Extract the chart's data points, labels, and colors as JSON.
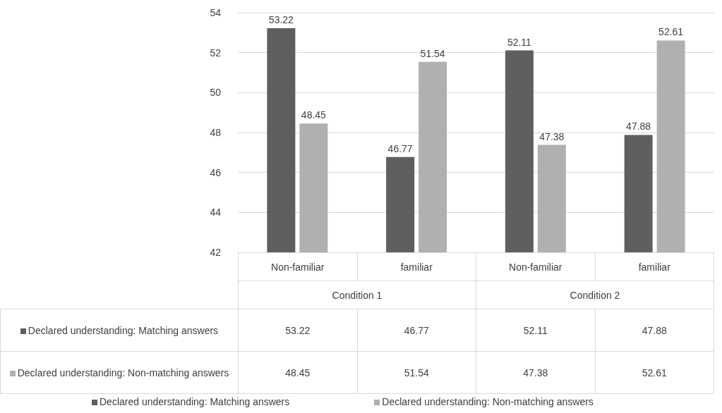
{
  "chart_data": {
    "type": "bar",
    "categories": [
      "Non-familiar",
      "familiar",
      "Non-familiar",
      "familiar"
    ],
    "annotations": [
      "Condition 1",
      "Condition 2",
      "53.22",
      "46.77",
      "52.11",
      "47.88",
      "48.45",
      "51.54",
      "47.38",
      "52.61"
    ],
    "series": [
      {
        "name": "Declared understanding: Matching answers",
        "color": "#5f5f5f",
        "values": [
          53.22,
          46.77,
          52.11,
          47.88
        ]
      },
      {
        "name": "Declared understanding: Non-matching answers",
        "color": "#b0b0b0",
        "values": [
          48.45,
          51.54,
          47.38,
          52.61
        ]
      }
    ],
    "ylim": [
      42,
      54
    ],
    "yticks": [
      42,
      44,
      46,
      48,
      50,
      52,
      54
    ],
    "grid": "y",
    "legend": "bottom",
    "data_labels": true
  }
}
